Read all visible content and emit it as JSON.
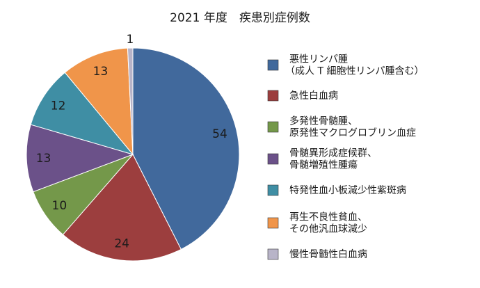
{
  "chart_data": {
    "type": "pie",
    "title": "2021 年度　疾患別症例数",
    "slices": [
      {
        "label_lines": [
          "悪性リンパ腫",
          "（成人 T 細胞性リンパ腫含む）"
        ],
        "value": 54,
        "color": "#41699c"
      },
      {
        "label_lines": [
          "急性白血病"
        ],
        "value": 24,
        "color": "#9c3e3e"
      },
      {
        "label_lines": [
          "多発性骨髄腫、",
          "原発性マクログロブリン血症"
        ],
        "value": 10,
        "color": "#74984a"
      },
      {
        "label_lines": [
          "骨髄異形成症候群、",
          "骨髄増殖性腫瘍"
        ],
        "value": 13,
        "color": "#6b5189"
      },
      {
        "label_lines": [
          "特発性血小板減少性紫斑病"
        ],
        "value": 12,
        "color": "#3f8ea4"
      },
      {
        "label_lines": [
          "再生不良性貧血、",
          "その他汎血球減少"
        ],
        "value": 13,
        "color": "#f0954a"
      },
      {
        "label_lines": [
          "慢性骨髄性白血病"
        ],
        "value": 1,
        "color": "#b8b4c8"
      }
    ],
    "legend_position": "right",
    "start_angle": "12 o'clock",
    "direction": "clockwise"
  }
}
